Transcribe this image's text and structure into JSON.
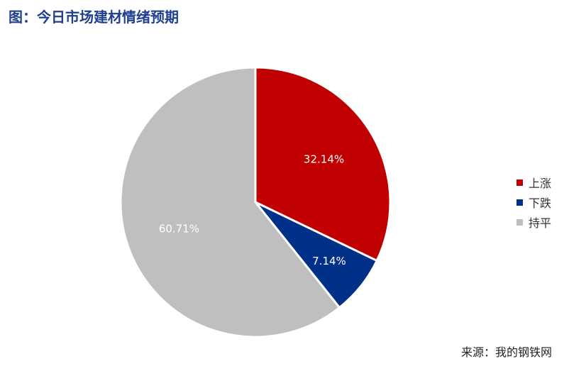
{
  "header": {
    "title": "图：今日市场建材情绪预期"
  },
  "footer": {
    "source": "来源：我的钢铁网"
  },
  "chart_data": {
    "type": "pie",
    "title": "图：今日市场建材情绪预期",
    "categories": [
      "上涨",
      "下跌",
      "持平"
    ],
    "values": [
      32.14,
      7.14,
      60.71
    ],
    "labels": [
      "32.14%",
      "7.14%",
      "60.71%"
    ],
    "colors": [
      "#c00000",
      "#003087",
      "#bfbfbf"
    ],
    "legend_position": "right",
    "start_angle": "12 o'clock",
    "direction": "clockwise"
  }
}
